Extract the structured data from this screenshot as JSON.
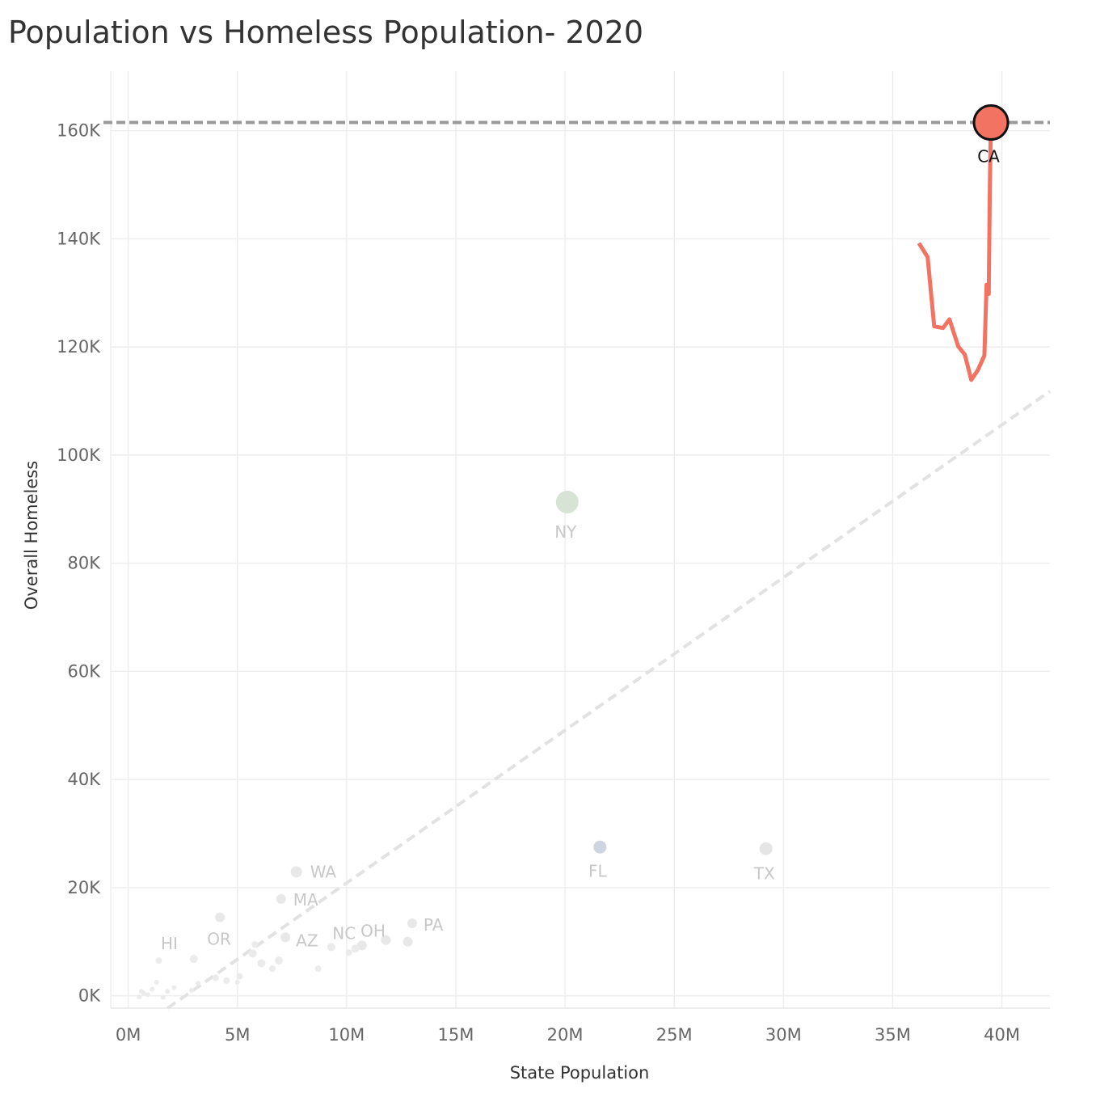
{
  "chart_data": {
    "type": "scatter",
    "title": "Population vs Homeless Population- 2020",
    "xlabel": "State Population",
    "ylabel": "Overall Homeless",
    "xlim": [
      -0.8,
      42.2
    ],
    "ylim": [
      -2.3,
      171
    ],
    "x_unit": "millions",
    "y_unit": "thousands",
    "x_ticks": [
      {
        "value": 0,
        "label": "0M"
      },
      {
        "value": 5,
        "label": "5M"
      },
      {
        "value": 10,
        "label": "10M"
      },
      {
        "value": 15,
        "label": "15M"
      },
      {
        "value": 20,
        "label": "20M"
      },
      {
        "value": 25,
        "label": "25M"
      },
      {
        "value": 30,
        "label": "30M"
      },
      {
        "value": 35,
        "label": "35M"
      },
      {
        "value": 40,
        "label": "40M"
      }
    ],
    "y_ticks": [
      {
        "value": 0,
        "label": "0K"
      },
      {
        "value": 20,
        "label": "20K"
      },
      {
        "value": 40,
        "label": "40K"
      },
      {
        "value": 60,
        "label": "60K"
      },
      {
        "value": 80,
        "label": "80K"
      },
      {
        "value": 100,
        "label": "100K"
      },
      {
        "value": 120,
        "label": "120K"
      },
      {
        "value": 140,
        "label": "140K"
      },
      {
        "value": 160,
        "label": "160K"
      }
    ],
    "grid": true,
    "reference_line": {
      "y": 161.5,
      "style": "dashed"
    },
    "trend_line": {
      "x": [
        1.8,
        42.2
      ],
      "y": [
        -2.3,
        111.8
      ],
      "style": "dashed"
    },
    "highlight": {
      "state": "CA",
      "x": 39.5,
      "y": 161.5,
      "color": "#F27361",
      "trail": {
        "x": [
          36.2,
          36.6,
          36.9,
          37.3,
          37.6,
          38.0,
          38.3,
          38.6,
          38.9,
          39.2,
          39.3,
          39.4,
          39.45,
          39.5
        ],
        "y": [
          139.2,
          136.6,
          123.8,
          123.5,
          125.1,
          120.1,
          118.6,
          113.9,
          115.7,
          118.4,
          131.5,
          129.8,
          150.0,
          161.5
        ]
      }
    },
    "states": [
      {
        "label": "NY",
        "x": 20.1,
        "y": 91.3,
        "color": "#D6E3D5",
        "size": 14
      },
      {
        "label": "FL",
        "x": 21.6,
        "y": 27.5,
        "color": "#CDD6E0",
        "size": 8
      },
      {
        "label": "TX",
        "x": 29.2,
        "y": 27.2,
        "color": "#E5E5E5",
        "size": 8
      },
      {
        "label": "WA",
        "x": 7.7,
        "y": 22.9,
        "color": "#E8E8E8",
        "size": 7
      },
      {
        "label": "MA",
        "x": 7.0,
        "y": 17.9,
        "color": "#E8E8E8",
        "size": 6
      },
      {
        "label": "PA",
        "x": 13.0,
        "y": 13.4,
        "color": "#E8E8E8",
        "size": 6
      },
      {
        "label": "OR",
        "x": 4.2,
        "y": 14.5,
        "color": "#E8E8E8",
        "size": 6
      },
      {
        "label": "AZ",
        "x": 7.2,
        "y": 10.8,
        "color": "#E8E8E8",
        "size": 6
      },
      {
        "label": "HI",
        "x": 1.4,
        "y": 6.5,
        "color": "#EBEBEB",
        "size": 4
      },
      {
        "label": "OH",
        "x": 11.8,
        "y": 10.3,
        "color": "#E8E8E8",
        "size": 6
      },
      {
        "label": "NC",
        "x": 10.7,
        "y": 9.3,
        "color": "#E8E8E8",
        "size": 6
      },
      {
        "label": "",
        "x": 12.8,
        "y": 10.0,
        "color": "#E8E8E8",
        "size": 6
      },
      {
        "label": "",
        "x": 3.0,
        "y": 6.8,
        "color": "#EBEBEB",
        "size": 5
      },
      {
        "label": "",
        "x": 5.7,
        "y": 7.8,
        "color": "#EBEBEB",
        "size": 5
      },
      {
        "label": "",
        "x": 6.1,
        "y": 6.0,
        "color": "#EBEBEB",
        "size": 5
      },
      {
        "label": "",
        "x": 6.9,
        "y": 6.5,
        "color": "#EBEBEB",
        "size": 5
      },
      {
        "label": "",
        "x": 5.8,
        "y": 9.5,
        "color": "#EBEBEB",
        "size": 4
      },
      {
        "label": "",
        "x": 9.3,
        "y": 9.0,
        "color": "#EBEBEB",
        "size": 5
      },
      {
        "label": "",
        "x": 10.4,
        "y": 8.7,
        "color": "#EBEBEB",
        "size": 5
      },
      {
        "label": "",
        "x": 10.1,
        "y": 8.0,
        "color": "#EBEBEB",
        "size": 4
      },
      {
        "label": "",
        "x": 8.7,
        "y": 5.0,
        "color": "#EBEBEB",
        "size": 4
      },
      {
        "label": "",
        "x": 6.6,
        "y": 5.0,
        "color": "#EBEBEB",
        "size": 4
      },
      {
        "label": "",
        "x": 5.1,
        "y": 3.6,
        "color": "#EBEBEB",
        "size": 4
      },
      {
        "label": "",
        "x": 4.5,
        "y": 2.8,
        "color": "#EBEBEB",
        "size": 4
      },
      {
        "label": "",
        "x": 4.0,
        "y": 3.3,
        "color": "#EBEBEB",
        "size": 4
      },
      {
        "label": "",
        "x": 5.0,
        "y": 2.5,
        "color": "#EBEBEB",
        "size": 3
      },
      {
        "label": "",
        "x": 3.2,
        "y": 2.3,
        "color": "#EBEBEB",
        "size": 3
      },
      {
        "label": "",
        "x": 2.1,
        "y": 1.5,
        "color": "#EBEBEB",
        "size": 3
      },
      {
        "label": "",
        "x": 1.8,
        "y": 0.8,
        "color": "#EBEBEB",
        "size": 3
      },
      {
        "label": "",
        "x": 1.1,
        "y": 1.2,
        "color": "#EBEBEB",
        "size": 3
      },
      {
        "label": "",
        "x": 0.7,
        "y": 0.5,
        "color": "#EBEBEB",
        "size": 3
      },
      {
        "label": "",
        "x": 0.6,
        "y": 0.8,
        "color": "#EBEBEB",
        "size": 3
      },
      {
        "label": "",
        "x": 0.9,
        "y": 0.2,
        "color": "#EBEBEB",
        "size": 3
      },
      {
        "label": "",
        "x": 0.5,
        "y": -0.2,
        "color": "#EBEBEB",
        "size": 3
      },
      {
        "label": "",
        "x": 1.3,
        "y": 2.5,
        "color": "#EBEBEB",
        "size": 3
      },
      {
        "label": "",
        "x": 2.9,
        "y": 1.0,
        "color": "#EBEBEB",
        "size": 3
      },
      {
        "label": "",
        "x": 1.6,
        "y": -0.3,
        "color": "#EBEBEB",
        "size": 3
      }
    ]
  }
}
